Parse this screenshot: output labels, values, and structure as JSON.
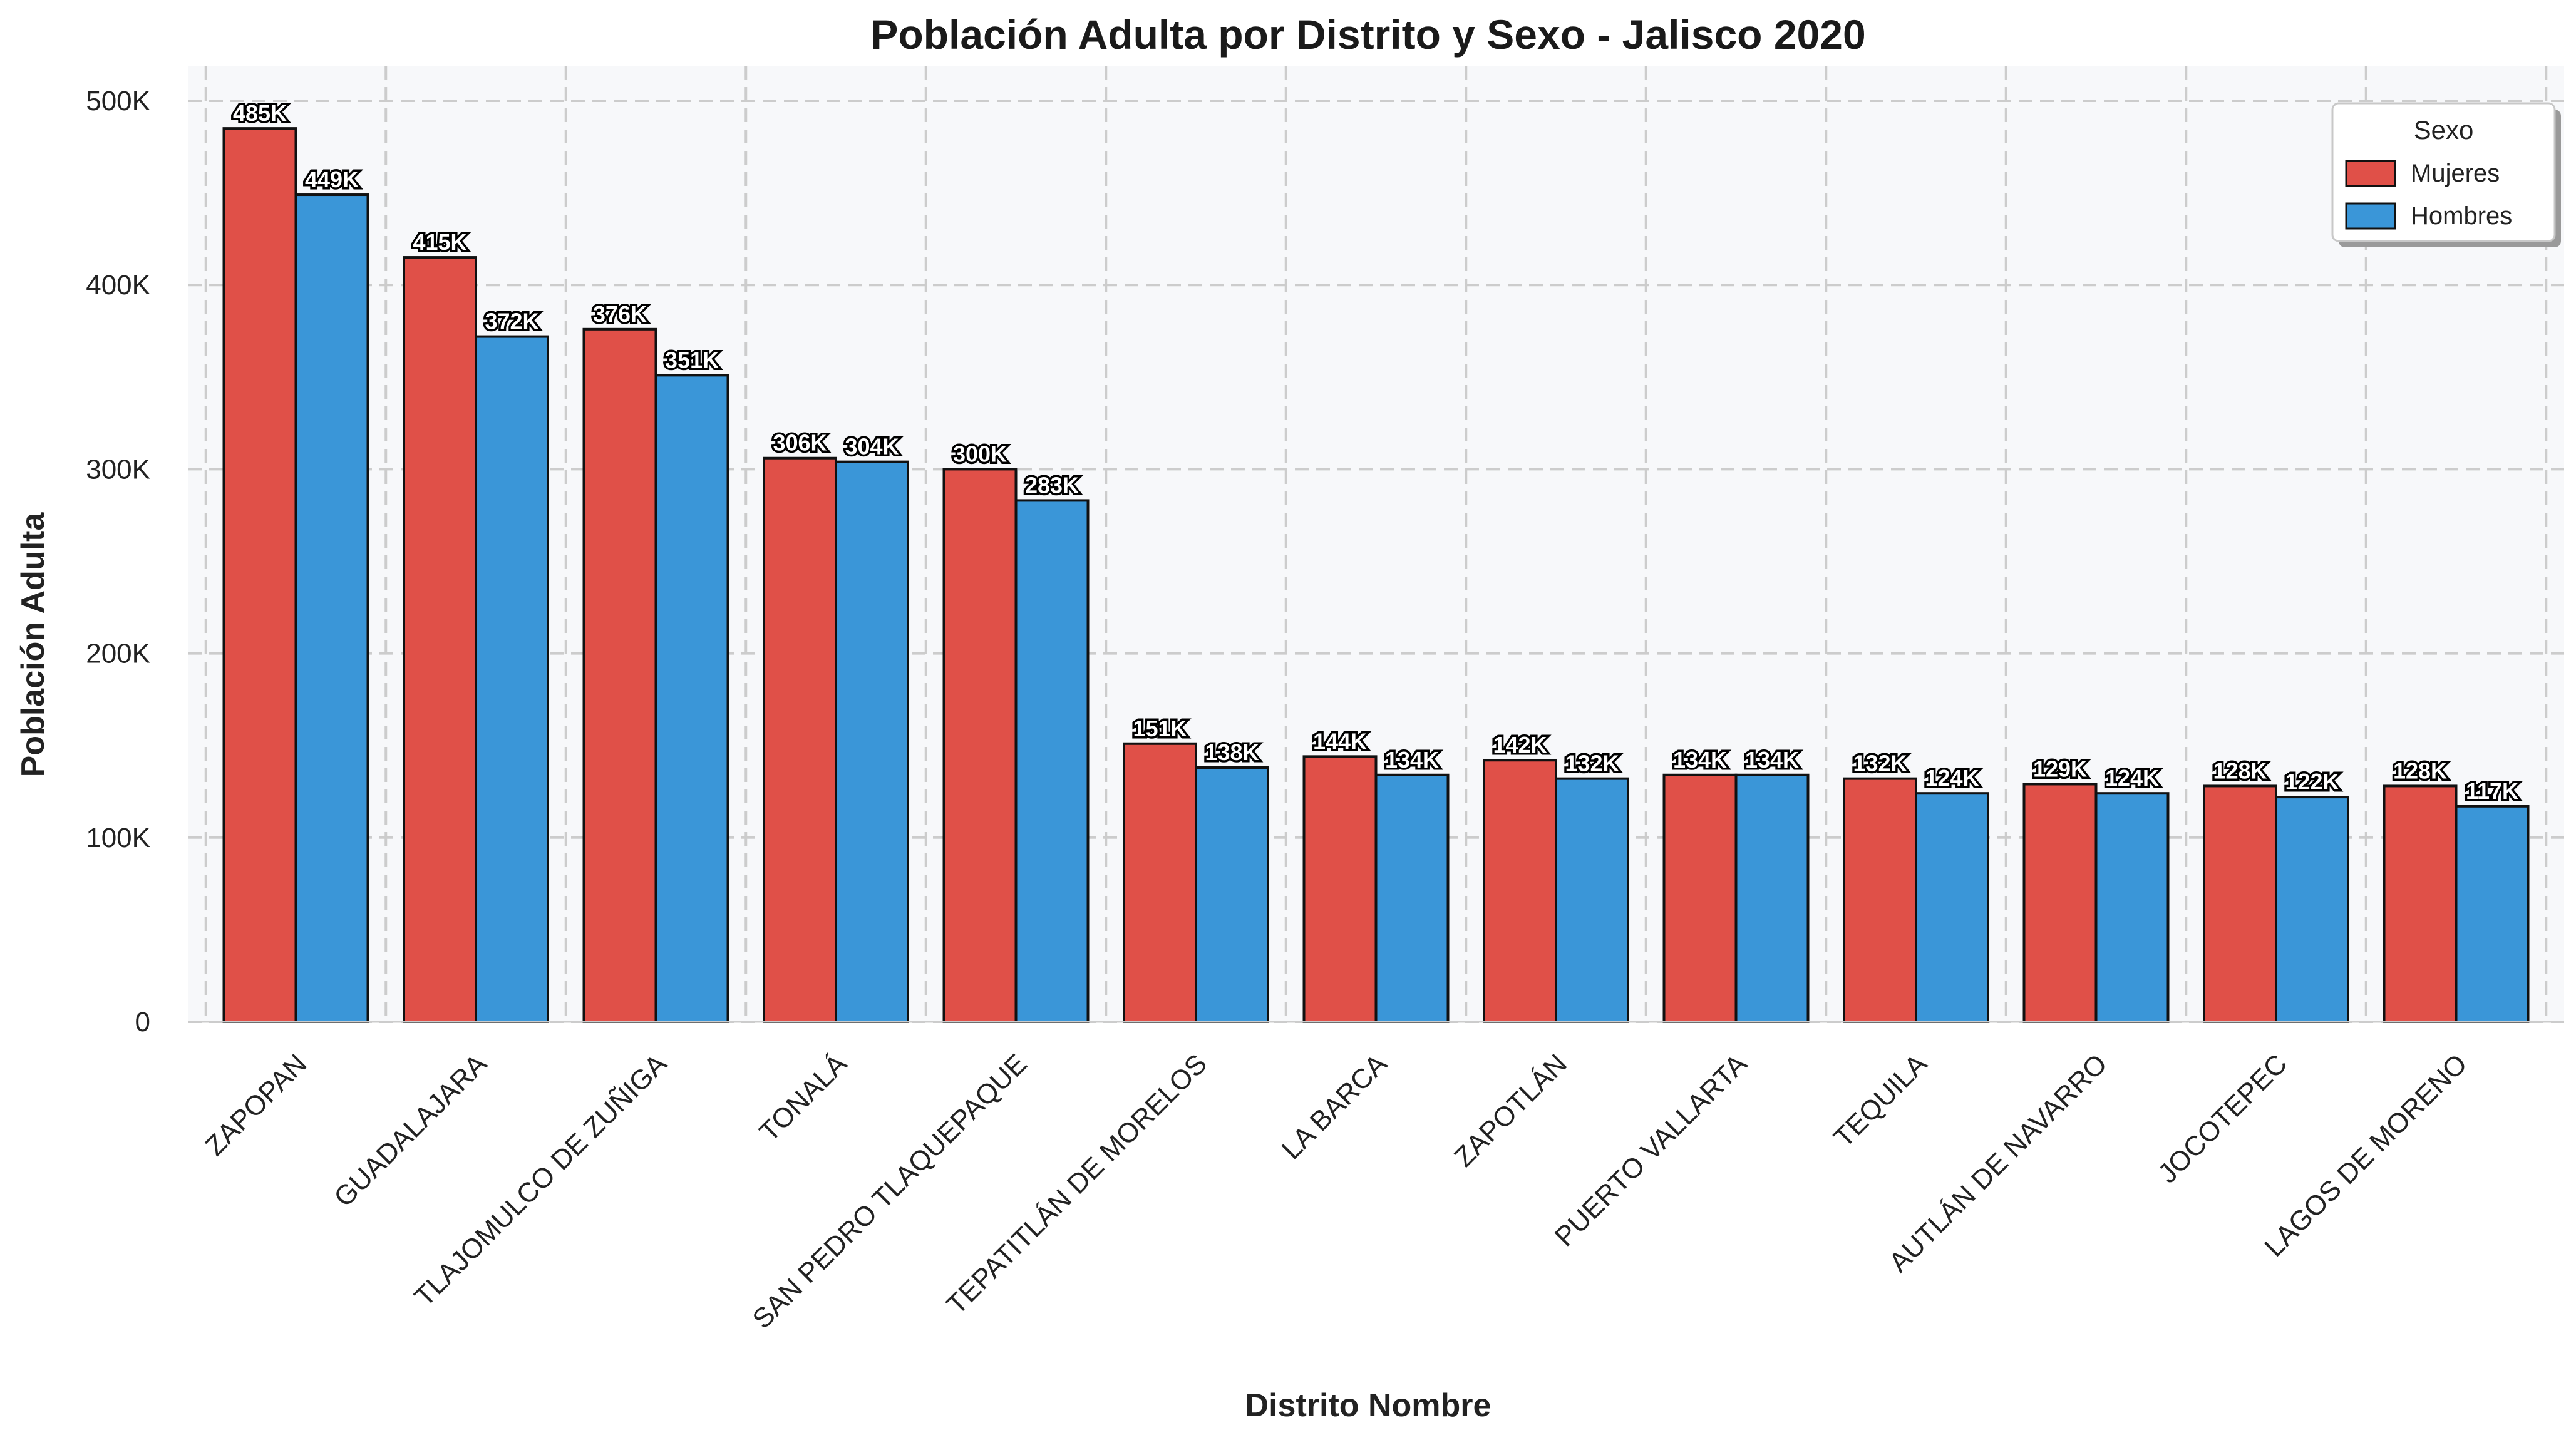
{
  "chart_data": {
    "type": "bar",
    "title": "Población Adulta por Distrito y Sexo - Jalisco 2020",
    "xlabel": "Distrito Nombre",
    "ylabel": "Población Adulta",
    "ylim": [
      0,
      500000
    ],
    "yticks": [
      0,
      100000,
      200000,
      300000,
      400000,
      500000
    ],
    "ytick_labels": [
      "0",
      "100K",
      "200K",
      "300K",
      "400K",
      "500K"
    ],
    "grid": true,
    "legend": {
      "title": "Sexo",
      "placement": "top-right"
    },
    "categories": [
      "ZAPOPAN",
      "GUADALAJARA",
      "TLAJOMULCO DE ZUÑIGA",
      "TONALÁ",
      "SAN PEDRO TLAQUEPAQUE",
      "TEPATITLÁN DE MORELOS",
      "LA BARCA",
      "ZAPOTLÁN",
      "PUERTO VALLARTA",
      "TEQUILA",
      "AUTLÁN DE NAVARRO",
      "JOCOTEPEC",
      "LAGOS DE MORENO"
    ],
    "series": [
      {
        "name": "Mujeres",
        "color": "#e05048",
        "values": [
          485000,
          415000,
          376000,
          306000,
          300000,
          151000,
          144000,
          142000,
          134000,
          132000,
          129000,
          128000,
          128000
        ],
        "labels": [
          "485K",
          "415K",
          "376K",
          "306K",
          "300K",
          "151K",
          "144K",
          "142K",
          "134K",
          "132K",
          "129K",
          "128K",
          "128K"
        ]
      },
      {
        "name": "Hombres",
        "color": "#3a96d8",
        "values": [
          449000,
          372000,
          351000,
          304000,
          283000,
          138000,
          134000,
          132000,
          134000,
          124000,
          124000,
          122000,
          117000
        ],
        "labels": [
          "449K",
          "372K",
          "351K",
          "304K",
          "283K",
          "138K",
          "134K",
          "132K",
          "134K",
          "124K",
          "124K",
          "122K",
          "117K"
        ]
      }
    ]
  }
}
